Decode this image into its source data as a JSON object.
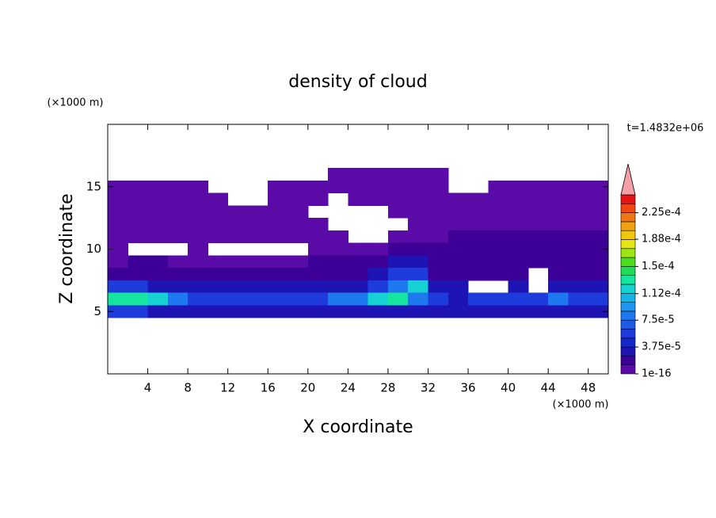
{
  "chart_data": {
    "type": "contour",
    "title": "density of cloud",
    "x_label": "X coordinate",
    "y_label": "Z coordinate",
    "x_unit": "(×1000 m)",
    "y_unit": "(×1000 m)",
    "time_label": "t=1.4832e+06",
    "xlim": [
      0,
      50
    ],
    "ylim": [
      0,
      20
    ],
    "xticks": [
      4,
      8,
      12,
      16,
      20,
      24,
      28,
      32,
      36,
      40,
      44,
      48
    ],
    "yticks": [
      5,
      10,
      15
    ],
    "x": [
      1,
      3,
      5,
      7,
      9,
      11,
      13,
      15,
      17,
      19,
      21,
      23,
      25,
      27,
      29,
      31,
      33,
      35,
      37,
      39,
      41,
      43,
      45,
      47,
      49
    ],
    "y": [
      16,
      15,
      14,
      13,
      12,
      11,
      10,
      9,
      8,
      7,
      6,
      5
    ],
    "z": [
      [
        null,
        null,
        null,
        null,
        null,
        null,
        null,
        null,
        null,
        null,
        null,
        5e-06,
        5e-06,
        5e-06,
        5e-06,
        5e-06,
        5e-06,
        null,
        null,
        null,
        null,
        null,
        null,
        null,
        null
      ],
      [
        5e-06,
        5e-06,
        5e-06,
        5e-06,
        5e-06,
        null,
        null,
        null,
        5e-06,
        5e-06,
        5e-06,
        5e-06,
        5e-06,
        5e-06,
        5e-06,
        5e-06,
        5e-06,
        null,
        null,
        5e-06,
        5e-06,
        5e-06,
        5e-06,
        5e-06,
        5e-06
      ],
      [
        5e-06,
        5e-06,
        5e-06,
        5e-06,
        5e-06,
        5e-06,
        null,
        null,
        5e-06,
        5e-06,
        5e-06,
        null,
        5e-06,
        5e-06,
        5e-06,
        5e-06,
        5e-06,
        5e-06,
        5e-06,
        5e-06,
        5e-06,
        5e-06,
        5e-06,
        5e-06,
        5e-06
      ],
      [
        5e-06,
        5e-06,
        5e-06,
        5e-06,
        5e-06,
        5e-06,
        5e-06,
        5e-06,
        5e-06,
        5e-06,
        null,
        null,
        null,
        null,
        5e-06,
        5e-06,
        5e-06,
        5e-06,
        5e-06,
        5e-06,
        5e-06,
        5e-06,
        5e-06,
        5e-06,
        5e-06
      ],
      [
        5e-06,
        5e-06,
        5e-06,
        5e-06,
        5e-06,
        5e-06,
        5e-06,
        5e-06,
        5e-06,
        5e-06,
        5e-06,
        null,
        null,
        null,
        null,
        5e-06,
        5e-06,
        5e-06,
        5e-06,
        5e-06,
        5e-06,
        5e-06,
        5e-06,
        5e-06,
        5e-06
      ],
      [
        5e-06,
        5e-06,
        5e-06,
        5e-06,
        5e-06,
        5e-06,
        5e-06,
        5e-06,
        5e-06,
        5e-06,
        5e-06,
        5e-06,
        null,
        null,
        5e-06,
        5e-06,
        5e-06,
        1.8e-05,
        1.8e-05,
        1.8e-05,
        1.8e-05,
        1.8e-05,
        1.8e-05,
        1.8e-05,
        1.8e-05
      ],
      [
        5e-06,
        null,
        null,
        null,
        5e-06,
        null,
        null,
        null,
        null,
        null,
        5e-06,
        5e-06,
        5e-06,
        5e-06,
        1.8e-05,
        1.8e-05,
        1.8e-05,
        1.8e-05,
        1.8e-05,
        1.8e-05,
        1.8e-05,
        1.8e-05,
        1.8e-05,
        1.8e-05,
        1.8e-05
      ],
      [
        5e-06,
        1.8e-05,
        1.8e-05,
        5e-06,
        5e-06,
        5e-06,
        5e-06,
        5e-06,
        5e-06,
        5e-06,
        1.8e-05,
        1.8e-05,
        1.8e-05,
        1.8e-05,
        3e-05,
        3e-05,
        1.8e-05,
        1.8e-05,
        1.8e-05,
        1.8e-05,
        1.8e-05,
        1.8e-05,
        1.8e-05,
        1.8e-05,
        1.8e-05
      ],
      [
        1.8e-05,
        1.8e-05,
        1.8e-05,
        1.8e-05,
        1.8e-05,
        1.8e-05,
        1.8e-05,
        1.8e-05,
        1.8e-05,
        1.8e-05,
        1.8e-05,
        1.8e-05,
        1.8e-05,
        3e-05,
        5e-05,
        5e-05,
        1.8e-05,
        1.8e-05,
        1.8e-05,
        1.8e-05,
        1.8e-05,
        null,
        1.8e-05,
        1.8e-05,
        1.8e-05
      ],
      [
        5e-05,
        5e-05,
        3e-05,
        3e-05,
        3e-05,
        3e-05,
        3e-05,
        3e-05,
        3e-05,
        3e-05,
        3e-05,
        3e-05,
        3e-05,
        5e-05,
        8e-05,
        0.000115,
        3e-05,
        3e-05,
        null,
        null,
        3e-05,
        null,
        3e-05,
        3e-05,
        3e-05
      ],
      [
        0.00013,
        0.00013,
        0.000115,
        8e-05,
        5e-05,
        5e-05,
        5e-05,
        5e-05,
        5e-05,
        5e-05,
        5e-05,
        8e-05,
        8e-05,
        0.000115,
        0.00013,
        8e-05,
        5e-05,
        3e-05,
        5e-05,
        5e-05,
        5e-05,
        5e-05,
        8e-05,
        5e-05,
        5e-05
      ],
      [
        5e-05,
        5e-05,
        3e-05,
        3e-05,
        3e-05,
        3e-05,
        3e-05,
        3e-05,
        3e-05,
        3e-05,
        3e-05,
        3e-05,
        3e-05,
        3e-05,
        3e-05,
        3e-05,
        3e-05,
        3e-05,
        3e-05,
        3e-05,
        3e-05,
        3e-05,
        3e-05,
        3e-05,
        3e-05
      ]
    ],
    "colorbar": {
      "levels": [
        1e-16,
        1.25e-05,
        2.5e-05,
        3.75e-05,
        5e-05,
        6.25e-05,
        7.5e-05,
        8.75e-05,
        0.0001,
        0.0001125,
        0.000125,
        0.0001375,
        0.00015,
        0.0001625,
        0.000175,
        0.0001875,
        0.0002,
        0.0002125,
        0.000225,
        0.0002375
      ],
      "max": 0.00025,
      "colors": [
        "#5a0aa6",
        "#3c0096",
        "#1e14b4",
        "#1428c8",
        "#1e3cdc",
        "#1e5ae6",
        "#1e78f0",
        "#1e96f0",
        "#14b4e6",
        "#14d2d2",
        "#14e6a0",
        "#1edc5a",
        "#50dc1e",
        "#a0e614",
        "#e6e614",
        "#f0c814",
        "#f0a014",
        "#f07814",
        "#f04614",
        "#e61414"
      ],
      "extend_color": "#f5a0a8",
      "ticks": [
        {
          "value": 1e-16,
          "label": "1e-16"
        },
        {
          "value": 3.75e-05,
          "label": "3.75e-5"
        },
        {
          "value": 7.5e-05,
          "label": "7.5e-5"
        },
        {
          "value": 0.000112,
          "label": "1.12e-4"
        },
        {
          "value": 0.00015,
          "label": "1.5e-4"
        },
        {
          "value": 0.000188,
          "label": "1.88e-4"
        },
        {
          "value": 0.000225,
          "label": "2.25e-4"
        }
      ]
    }
  }
}
